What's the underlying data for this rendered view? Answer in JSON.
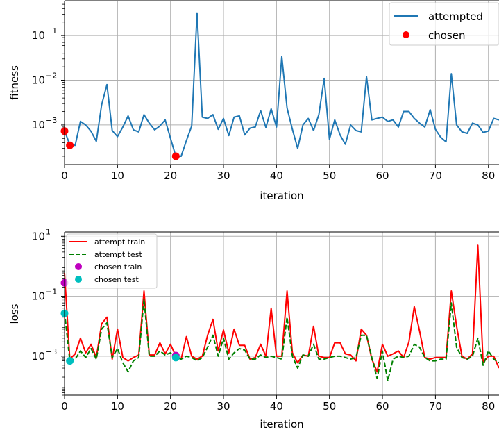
{
  "chart_data": [
    {
      "type": "line",
      "xlabel": "iteration",
      "ylabel": "fitness",
      "yscale": "log",
      "xlim": [
        0,
        82
      ],
      "ylim": [
        0.00013,
        0.6
      ],
      "grid": true,
      "legend_position": "top-right",
      "x_ticks": [
        0,
        10,
        20,
        30,
        40,
        50,
        60,
        70,
        80
      ],
      "y_ticks": [
        {
          "value": 0.001,
          "base": "10",
          "exp": "−3"
        },
        {
          "value": 0.01,
          "base": "10",
          "exp": "−2"
        },
        {
          "value": 0.1,
          "base": "10",
          "exp": "−1"
        }
      ],
      "series": [
        {
          "name": "attempted",
          "kind": "line",
          "color": "#1f77b4",
          "x": [
            0,
            1,
            2,
            3,
            4,
            5,
            6,
            7,
            8,
            9,
            10,
            11,
            12,
            13,
            14,
            15,
            16,
            17,
            18,
            19,
            20,
            21,
            22,
            23,
            24,
            25,
            26,
            27,
            28,
            29,
            30,
            31,
            32,
            33,
            34,
            35,
            36,
            37,
            38,
            39,
            40,
            41,
            42,
            43,
            44,
            45,
            46,
            47,
            48,
            49,
            50,
            51,
            52,
            53,
            54,
            55,
            56,
            57,
            58,
            59,
            60,
            61,
            62,
            63,
            64,
            65,
            66,
            67,
            68,
            69,
            70,
            71,
            72,
            73,
            74,
            75,
            76,
            77,
            78,
            79,
            80,
            81,
            82
          ],
          "y": [
            0.00075,
            0.00036,
            0.00035,
            0.0012,
            0.001,
            0.00072,
            0.00043,
            0.0028,
            0.008,
            0.00075,
            0.00055,
            0.0009,
            0.0016,
            0.00078,
            0.0007,
            0.0017,
            0.0011,
            0.00078,
            0.00095,
            0.0013,
            0.0005,
            0.0002,
            0.0002,
            0.00045,
            0.00095,
            0.32,
            0.0015,
            0.0014,
            0.0017,
            0.0008,
            0.0014,
            0.00058,
            0.0015,
            0.0016,
            0.0006,
            0.00085,
            0.0009,
            0.0021,
            0.00088,
            0.0023,
            0.0009,
            0.034,
            0.0024,
            0.0008,
            0.0003,
            0.001,
            0.0014,
            0.00075,
            0.0017,
            0.011,
            0.00048,
            0.0013,
            0.0006,
            0.00037,
            0.001,
            0.00075,
            0.0007,
            0.012,
            0.0013,
            0.0014,
            0.0015,
            0.0012,
            0.0013,
            0.0009,
            0.002,
            0.002,
            0.0014,
            0.0011,
            0.0009,
            0.0022,
            0.0008,
            0.00053,
            0.00042,
            0.014,
            0.001,
            0.0007,
            0.00065,
            0.0011,
            0.001,
            0.00068,
            0.00073,
            0.0014,
            0.0013
          ]
        },
        {
          "name": "chosen",
          "kind": "scatter",
          "color": "#ff0000",
          "x": [
            0,
            1,
            21
          ],
          "y": [
            0.00073,
            0.00035,
            0.0002
          ]
        }
      ]
    },
    {
      "type": "line",
      "xlabel": "iteration",
      "ylabel": "loss",
      "yscale": "log",
      "xlim": [
        0,
        82
      ],
      "ylim": [
        5e-05,
        14
      ],
      "grid": true,
      "legend_position": "top-left",
      "x_ticks": [
        0,
        10,
        20,
        30,
        40,
        50,
        60,
        70,
        80
      ],
      "y_ticks": [
        {
          "value": 0.001,
          "base": "10",
          "exp": "−3"
        },
        {
          "value": 0.1,
          "base": "10",
          "exp": "−1"
        },
        {
          "value": 10,
          "base": "10",
          "exp": "1"
        }
      ],
      "series": [
        {
          "name": "attempt train",
          "kind": "line",
          "color": "#ff0000",
          "x": [
            0,
            1,
            2,
            3,
            4,
            5,
            6,
            7,
            8,
            9,
            10,
            11,
            12,
            13,
            14,
            15,
            16,
            17,
            18,
            19,
            20,
            21,
            22,
            23,
            24,
            25,
            26,
            27,
            28,
            29,
            30,
            31,
            32,
            33,
            34,
            35,
            36,
            37,
            38,
            39,
            40,
            41,
            42,
            43,
            44,
            45,
            46,
            47,
            48,
            49,
            50,
            51,
            52,
            53,
            54,
            55,
            56,
            57,
            58,
            59,
            60,
            61,
            62,
            63,
            64,
            65,
            66,
            67,
            68,
            69,
            70,
            71,
            72,
            73,
            74,
            75,
            76,
            77,
            78,
            79,
            80,
            81,
            82
          ],
          "y": [
            0.6,
            0.0008,
            0.0012,
            0.004,
            0.0013,
            0.0025,
            0.0009,
            0.012,
            0.02,
            0.0008,
            0.008,
            0.0009,
            0.0007,
            0.0009,
            0.0011,
            0.15,
            0.0011,
            0.0011,
            0.0028,
            0.0012,
            0.0025,
            0.001,
            0.0008,
            0.0045,
            0.001,
            0.0008,
            0.001,
            0.005,
            0.017,
            0.0015,
            0.0075,
            0.0013,
            0.008,
            0.0023,
            0.0023,
            0.0008,
            0.0009,
            0.0025,
            0.001,
            0.04,
            0.001,
            0.001,
            0.15,
            0.0013,
            0.0006,
            0.0011,
            0.001,
            0.01,
            0.001,
            0.0009,
            0.0009,
            0.0028,
            0.0028,
            0.0012,
            0.0011,
            0.0007,
            0.008,
            0.005,
            0.0008,
            0.0003,
            0.0025,
            0.001,
            0.0012,
            0.0015,
            0.0009,
            0.003,
            0.045,
            0.007,
            0.0009,
            0.0008,
            0.0009,
            0.0009,
            0.0009,
            0.15,
            0.01,
            0.001,
            0.0008,
            0.0012,
            5,
            0.0006,
            0.001,
            0.001,
            0.0004
          ]
        },
        {
          "name": "attempt test",
          "kind": "line",
          "dashed": true,
          "color": "#008000",
          "x": [
            0,
            1,
            2,
            3,
            4,
            5,
            6,
            7,
            8,
            9,
            10,
            11,
            12,
            13,
            14,
            15,
            16,
            17,
            18,
            19,
            20,
            21,
            22,
            23,
            24,
            25,
            26,
            27,
            28,
            29,
            30,
            31,
            32,
            33,
            34,
            35,
            36,
            37,
            38,
            39,
            40,
            41,
            42,
            43,
            44,
            45,
            46,
            47,
            48,
            49,
            50,
            51,
            52,
            53,
            54,
            55,
            56,
            57,
            58,
            59,
            60,
            61,
            62,
            63,
            64,
            65,
            66,
            67,
            68,
            69,
            70,
            71,
            72,
            73,
            74,
            75,
            76,
            77,
            78,
            79,
            80,
            81,
            82
          ],
          "y": [
            0.03,
            0.0007,
            0.0008,
            0.0015,
            0.0009,
            0.0018,
            0.0008,
            0.008,
            0.013,
            0.0009,
            0.0018,
            0.0006,
            0.0003,
            0.0007,
            0.0009,
            0.08,
            0.001,
            0.001,
            0.0015,
            0.0011,
            0.0013,
            0.0009,
            0.0008,
            0.001,
            0.0009,
            0.0007,
            0.0009,
            0.002,
            0.005,
            0.001,
            0.004,
            0.0008,
            0.0013,
            0.0018,
            0.0016,
            0.0008,
            0.0008,
            0.0011,
            0.0009,
            0.001,
            0.0009,
            0.0008,
            0.02,
            0.001,
            0.0004,
            0.0011,
            0.001,
            0.0025,
            0.0008,
            0.0008,
            0.0009,
            0.001,
            0.001,
            0.0009,
            0.0008,
            0.0009,
            0.005,
            0.005,
            0.0009,
            0.00018,
            0.0015,
            0.00015,
            0.0008,
            0.001,
            0.0009,
            0.001,
            0.0025,
            0.002,
            0.0009,
            0.0007,
            0.0007,
            0.0008,
            0.0008,
            0.06,
            0.002,
            0.0009,
            0.0008,
            0.001,
            0.004,
            0.0005,
            0.0015,
            0.0008,
            0.0006
          ]
        },
        {
          "name": "chosen train",
          "kind": "scatter",
          "color": "#bf00bf",
          "x": [
            0,
            21
          ],
          "y": [
            0.28,
            0.00105
          ]
        },
        {
          "name": "chosen test",
          "kind": "scatter",
          "color": "#00bfbf",
          "x": [
            0,
            1,
            21
          ],
          "y": [
            0.027,
            0.0007,
            0.0009
          ]
        }
      ]
    }
  ]
}
